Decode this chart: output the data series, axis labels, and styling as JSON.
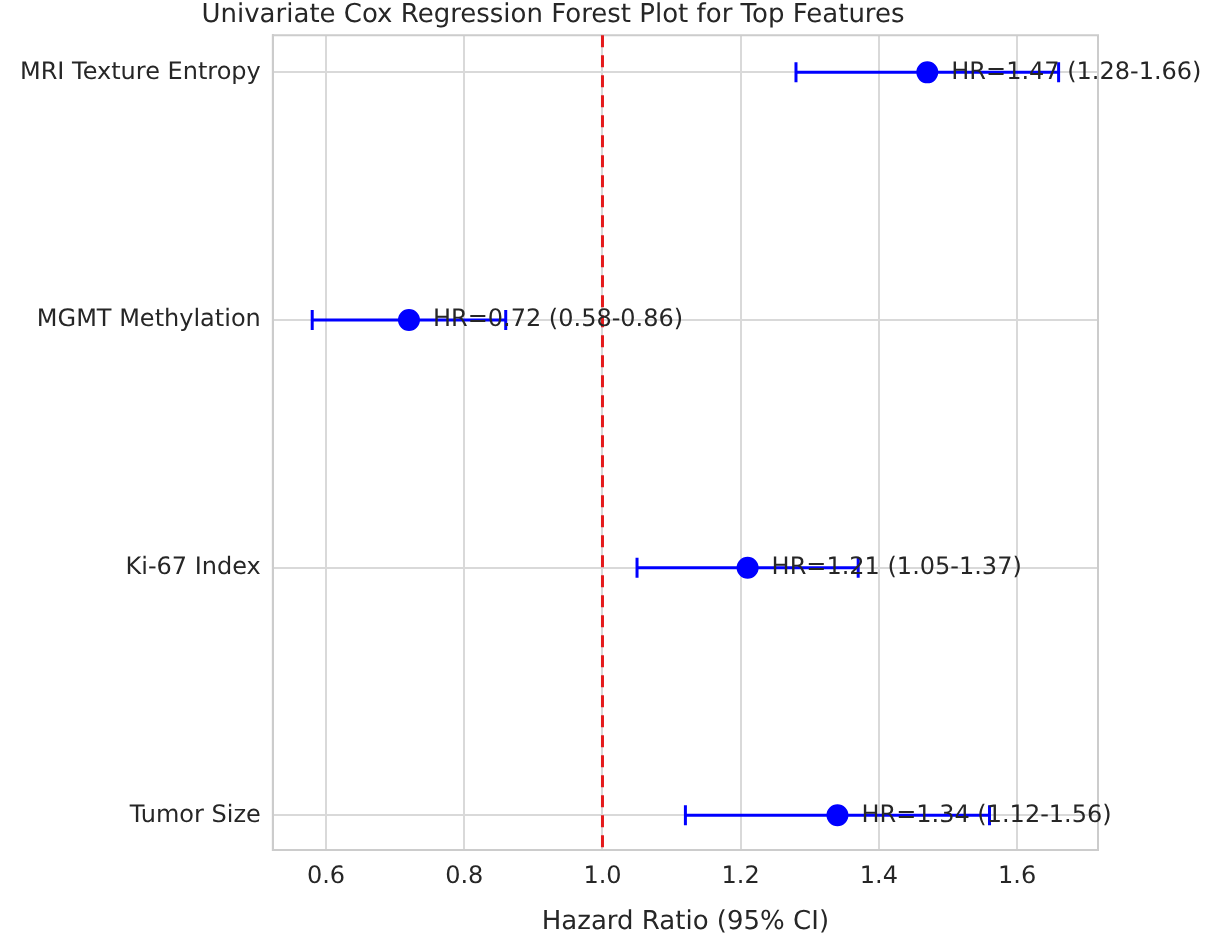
{
  "chart_data": {
    "type": "scatter",
    "title": "Univariate Cox Regression Forest Plot for Top Features",
    "xlabel": "Hazard Ratio (95% CI)",
    "categories": [
      "MRI Texture Entropy",
      "MGMT Methylation",
      "Ki-67 Index",
      "Tumor Size"
    ],
    "orientation": "horizontal",
    "series": [
      {
        "color": "#0000ff",
        "values": [
          1.47,
          0.72,
          1.21,
          1.34
        ],
        "errors": [
          [
            1.28,
            1.66
          ],
          [
            0.58,
            0.86
          ],
          [
            1.05,
            1.37
          ],
          [
            1.12,
            1.56
          ]
        ],
        "value_labels": [
          "HR=1.47 (1.28-1.66)",
          "HR=0.72 (0.58-0.86)",
          "HR=1.21 (1.05-1.37)",
          "HR=1.34 (1.12-1.56)"
        ]
      }
    ],
    "xlim": [
      0.523,
      1.717
    ],
    "xticks": [
      0.6,
      0.8,
      {
        "value": 1,
        "label": "1.0"
      },
      1.2,
      1.4,
      1.6
    ],
    "ref_lines": [
      {
        "axis": "x",
        "value": 1.0,
        "color": "#e41a1c",
        "line_style": "dashed"
      }
    ],
    "grid": true,
    "marker": "circle"
  }
}
